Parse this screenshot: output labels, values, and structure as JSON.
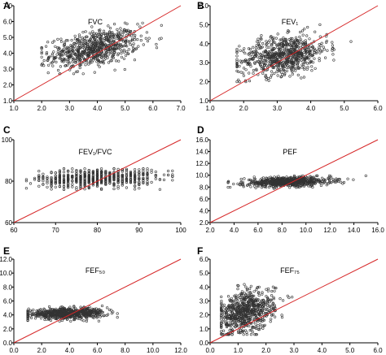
{
  "colors": {
    "identity_line": "#d62728",
    "points": "#333333",
    "axes": "#000000",
    "background": "#ffffff"
  },
  "chart_data": [
    {
      "panel": "A",
      "type": "scatter",
      "title": "FVC",
      "xlim": [
        1.0,
        7.0
      ],
      "ylim": [
        1.0,
        7.0
      ],
      "xticks": [
        "1.0",
        "2.0",
        "3.0",
        "4.0",
        "5.0",
        "6.0",
        "7.0"
      ],
      "yticks": [
        "1.0",
        "2.0",
        "3.0",
        "4.0",
        "5.0",
        "6.0",
        "7.0"
      ],
      "reference_line": "identity (y = x)",
      "points_estimated": {
        "n": 700,
        "x_mean": 3.9,
        "x_sd": 0.8,
        "y_mean": 4.3,
        "y_sd": 0.55,
        "slope": 0.3,
        "x_range": [
          2.0,
          6.8
        ],
        "y_range": [
          2.7,
          6.0
        ]
      }
    },
    {
      "panel": "B",
      "type": "scatter",
      "title": "FEV₁",
      "xlim": [
        1.0,
        6.0
      ],
      "ylim": [
        1.0,
        6.0
      ],
      "xticks": [
        "1.0",
        "2.0",
        "3.0",
        "4.0",
        "5.0",
        "6.0"
      ],
      "yticks": [
        "1.0",
        "2.0",
        "3.0",
        "4.0",
        "5.0",
        "6.0"
      ],
      "reference_line": "identity (y = x)",
      "points_estimated": {
        "n": 700,
        "x_mean": 3.2,
        "x_sd": 0.65,
        "y_mean": 3.4,
        "y_sd": 0.5,
        "slope": 0.25,
        "x_range": [
          1.8,
          5.2
        ],
        "y_range": [
          2.0,
          5.0
        ]
      }
    },
    {
      "panel": "C",
      "type": "scatter",
      "title": "FEV₁/FVC",
      "xlim": [
        60,
        100
      ],
      "ylim": [
        60,
        100
      ],
      "xticks": [
        "60",
        "70",
        "80",
        "90",
        "100"
      ],
      "yticks": [
        "60",
        "80",
        "100"
      ],
      "reference_line": "identity (y = x)",
      "points_estimated": {
        "n": 650,
        "x_mean": 80,
        "x_sd": 7,
        "y_mean": 81.5,
        "y_sd": 2.2,
        "slope": 0.05,
        "x_range": [
          63,
          98
        ],
        "y_range": [
          76,
          86
        ],
        "x_discrete_step": 1
      }
    },
    {
      "panel": "D",
      "type": "scatter",
      "title": "PEF",
      "xlim": [
        2.0,
        16.0
      ],
      "ylim": [
        2.0,
        16.0
      ],
      "xticks": [
        "2.0",
        "4.0",
        "6.0",
        "8.0",
        "10.0",
        "12.0",
        "14.0",
        "16.0"
      ],
      "yticks": [
        "2.0",
        "4.0",
        "6.0",
        "8.0",
        "10.0",
        "12.0",
        "14.0",
        "16.0"
      ],
      "reference_line": "identity (y = x)",
      "points_estimated": {
        "n": 700,
        "x_mean": 8.5,
        "x_sd": 1.8,
        "y_mean": 8.9,
        "y_sd": 0.4,
        "slope": 0.05,
        "x_range": [
          3.5,
          15.0
        ],
        "y_range": [
          7.6,
          9.9
        ]
      }
    },
    {
      "panel": "E",
      "type": "scatter",
      "title": "FEF₅₀",
      "xlim": [
        0.0,
        12.0
      ],
      "ylim": [
        0.0,
        12.0
      ],
      "xticks": [
        "0.0",
        "2.0",
        "4.0",
        "6.0",
        "8.0",
        "10.0",
        "12.0"
      ],
      "yticks": [
        "0.0",
        "2.0",
        "4.0",
        "6.0",
        "8.0",
        "10.0",
        "12.0"
      ],
      "reference_line": "identity (y = x)",
      "points_estimated": {
        "n": 700,
        "x_mean": 3.8,
        "x_sd": 1.4,
        "y_mean": 4.2,
        "y_sd": 0.35,
        "slope": 0.05,
        "x_range": [
          1.0,
          9.8
        ],
        "y_range": [
          3.1,
          5.3
        ]
      }
    },
    {
      "panel": "F",
      "type": "scatter",
      "title": "FEF₇₅",
      "xlim": [
        0.0,
        6.0
      ],
      "ylim": [
        0.0,
        6.0
      ],
      "xticks": [
        "0.0",
        "1.0",
        "2.0",
        "3.0",
        "4.0",
        "5.0",
        "6.0"
      ],
      "yticks": [
        "0.0",
        "1.0",
        "2.0",
        "3.0",
        "4.0",
        "5.0",
        "6.0"
      ],
      "reference_line": "identity (y = x)",
      "points_estimated": {
        "n": 700,
        "x_mean": 1.3,
        "x_sd": 0.5,
        "y_mean": 2.2,
        "y_sd": 0.75,
        "slope": 0.5,
        "x_range": [
          0.4,
          3.8
        ],
        "y_range": [
          0.6,
          5.0
        ]
      }
    }
  ]
}
